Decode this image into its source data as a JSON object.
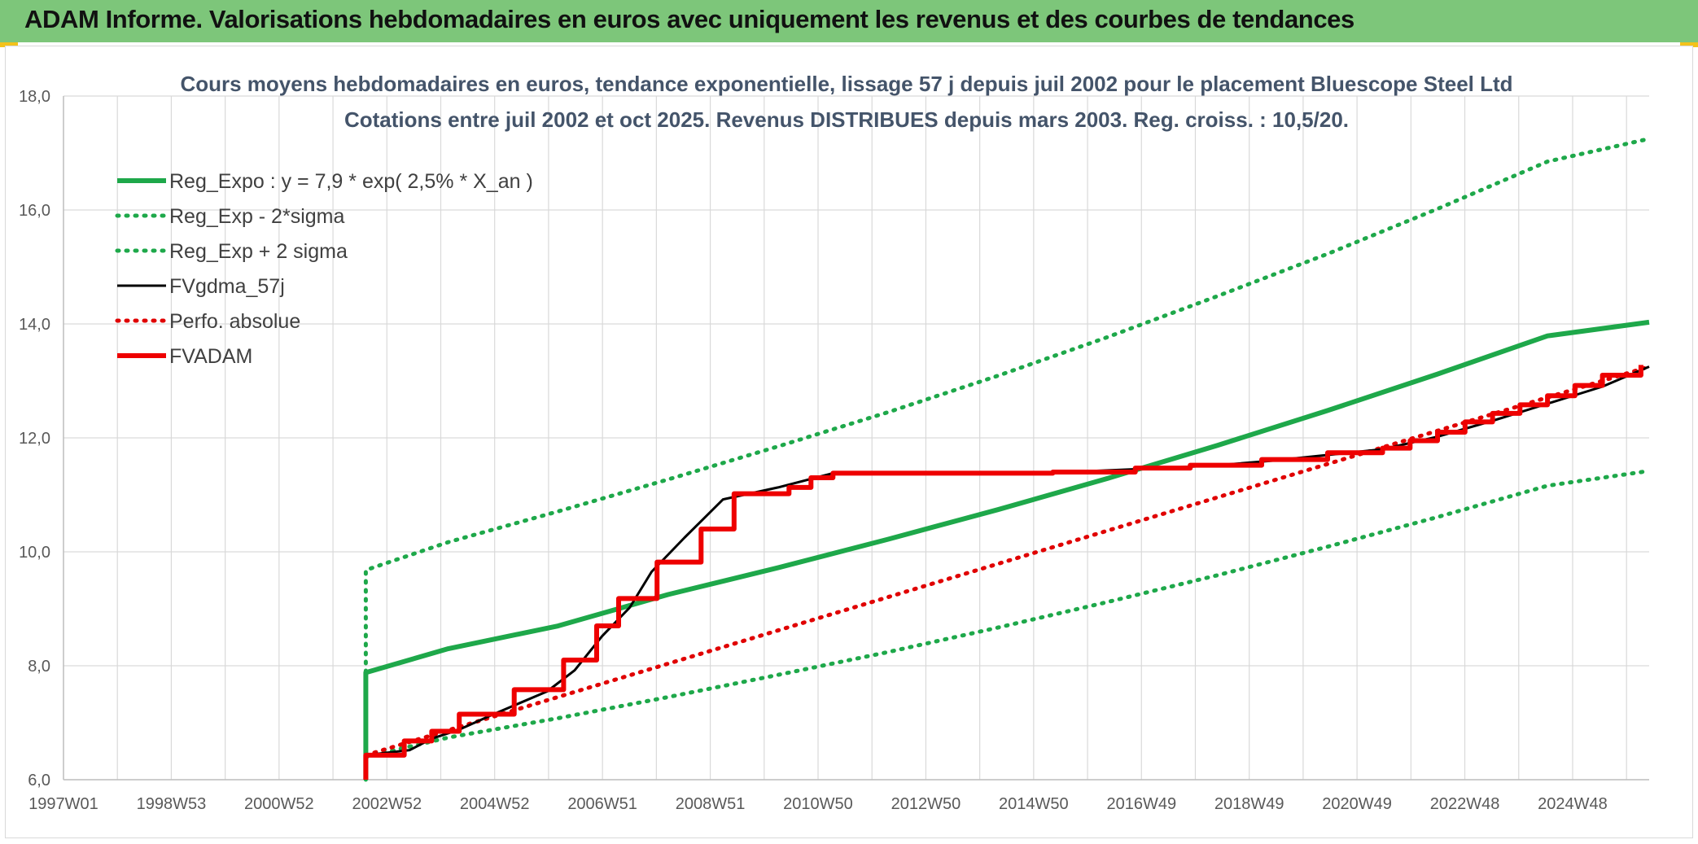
{
  "header": {
    "title": "ADAM Informe. Valorisations hebdomadaires en euros avec uniquement les revenus et des courbes de tendances"
  },
  "colors": {
    "header_band": "#7dc67a",
    "corner_accent": "#f3c21b",
    "regression": "#1ea84a",
    "fvgdma": "#000000",
    "perfo": "#e00000",
    "fvadam": "#ee0000"
  },
  "chart_data": {
    "type": "line",
    "title_line1": "Cours moyens hebdomadaires en euros, tendance exponentielle, lissage 57 j depuis juil 2002 pour le placement Bluescope Steel Ltd",
    "title_line2": "Cotations entre juil 2002 et oct 2025. Revenus DISTRIBUES depuis mars 2003. Reg. croiss. : 10,5/20.",
    "x_tick_labels": [
      "1997W01",
      "1998W53",
      "2000W52",
      "2002W52",
      "2004W52",
      "2006W51",
      "2008W51",
      "2010W50",
      "2012W50",
      "2014W50",
      "2016W49",
      "2018W49",
      "2020W49",
      "2022W48",
      "2024W48"
    ],
    "xlim": [
      1997.0,
      2025.85
    ],
    "ylim": [
      6.0,
      18.0
    ],
    "y_ticks": [
      "6,0",
      "8,0",
      "10,0",
      "12,0",
      "14,0",
      "16,0",
      "18,0"
    ],
    "y_tick_values": [
      6,
      8,
      10,
      12,
      14,
      16,
      18
    ],
    "grid": true,
    "legend_position": "top-left",
    "series": [
      {
        "name": "Reg_Expo : y = 7,9 * exp( 2,5% *  X_an )",
        "style": "solid-thick",
        "color": "#1ea84a",
        "x": [
          2002.5,
          2002.5,
          2004,
          2006,
          2008,
          2010,
          2012,
          2014,
          2016,
          2018,
          2020,
          2022,
          2024,
          2025.85
        ],
        "y": [
          6.0,
          7.88,
          8.3,
          8.7,
          9.25,
          9.72,
          10.22,
          10.74,
          11.29,
          11.87,
          12.48,
          13.12,
          13.79,
          14.03
        ]
      },
      {
        "name": "Reg_Exp - 2*sigma",
        "style": "dotted",
        "color": "#1ea84a",
        "x": [
          2002.5,
          2004,
          2006,
          2008,
          2010,
          2012,
          2014,
          2016,
          2018,
          2020,
          2022,
          2024,
          2025.85
        ],
        "y": [
          6.4,
          6.74,
          7.08,
          7.45,
          7.84,
          8.24,
          8.67,
          9.12,
          9.59,
          10.09,
          10.61,
          11.16,
          11.42
        ]
      },
      {
        "name": "Reg_Exp + 2 sigma",
        "style": "dotted",
        "color": "#1ea84a",
        "x": [
          2002.5,
          2002.5,
          2004,
          2006,
          2008,
          2010,
          2012,
          2014,
          2016,
          2018,
          2020,
          2022,
          2024,
          2025.85
        ],
        "y": [
          6.0,
          9.68,
          10.17,
          10.71,
          11.27,
          11.85,
          12.45,
          13.09,
          13.77,
          14.49,
          15.23,
          16.02,
          16.85,
          17.25
        ]
      },
      {
        "name": "FVgdma_57j",
        "style": "solid",
        "color": "#000000",
        "x": [
          2002.5,
          2003.3,
          2003.7,
          2004.2,
          2004.8,
          2005.8,
          2006.3,
          2006.8,
          2007.3,
          2007.7,
          2008.3,
          2009.0,
          2010.0,
          2011.0,
          2013.0,
          2015.0,
          2017.0,
          2018.0,
          2019.0,
          2020.0,
          2021.0,
          2022.0,
          2023.0,
          2024.0,
          2025.0,
          2025.85
        ],
        "y": [
          6.43,
          6.52,
          6.72,
          6.88,
          7.14,
          7.55,
          7.92,
          8.52,
          9.02,
          9.65,
          10.25,
          10.92,
          11.13,
          11.38,
          11.38,
          11.39,
          11.47,
          11.52,
          11.6,
          11.7,
          11.8,
          12.02,
          12.3,
          12.6,
          12.9,
          13.25
        ]
      },
      {
        "name": "Perfo. absolue",
        "style": "dotted",
        "color": "#e00000",
        "x": [
          2002.5,
          2025.85
        ],
        "y": [
          6.43,
          13.25
        ]
      },
      {
        "name": "FVADAM",
        "style": "steps-thick",
        "color": "#ee0000",
        "x": [
          2002.5,
          2002.5,
          2003.2,
          2003.2,
          2003.7,
          2003.7,
          2004.2,
          2004.2,
          2005.2,
          2005.2,
          2006.1,
          2006.1,
          2006.7,
          2006.7,
          2007.1,
          2007.1,
          2007.8,
          2007.8,
          2008.6,
          2008.6,
          2009.2,
          2009.2,
          2010.2,
          2010.2,
          2010.6,
          2010.6,
          2011.0,
          2011.0,
          2015.0,
          2015.0,
          2016.5,
          2016.5,
          2017.5,
          2017.5,
          2018.8,
          2018.8,
          2020.0,
          2020.0,
          2021.0,
          2021.0,
          2021.5,
          2021.5,
          2022.0,
          2022.0,
          2022.5,
          2022.5,
          2023.0,
          2023.0,
          2023.5,
          2023.5,
          2024.0,
          2024.0,
          2024.5,
          2024.5,
          2025.0,
          2025.0,
          2025.7,
          2025.7
        ],
        "y": [
          6.0,
          6.43,
          6.43,
          6.68,
          6.68,
          6.85,
          6.85,
          7.15,
          7.15,
          7.58,
          7.58,
          8.1,
          8.1,
          8.7,
          8.7,
          9.18,
          9.18,
          9.82,
          9.82,
          10.4,
          10.4,
          11.02,
          11.02,
          11.13,
          11.13,
          11.3,
          11.3,
          11.38,
          11.38,
          11.4,
          11.4,
          11.47,
          11.47,
          11.52,
          11.52,
          11.62,
          11.62,
          11.74,
          11.74,
          11.82,
          11.82,
          11.95,
          11.95,
          12.1,
          12.1,
          12.28,
          12.28,
          12.43,
          12.43,
          12.58,
          12.58,
          12.74,
          12.74,
          12.92,
          12.92,
          13.1,
          13.1,
          13.28
        ]
      }
    ]
  }
}
